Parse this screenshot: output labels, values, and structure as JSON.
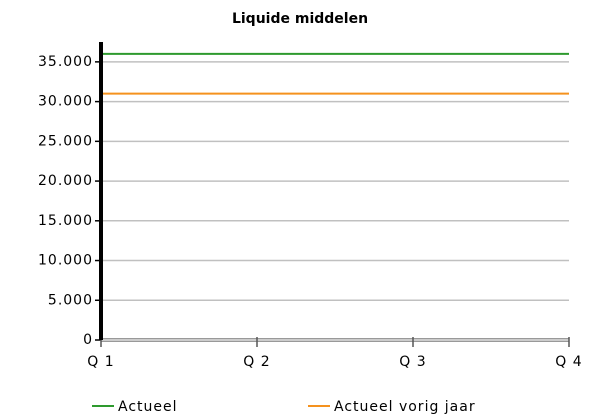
{
  "chart_data": {
    "type": "line",
    "title": "Liquide middelen",
    "categories": [
      "Q 1",
      "Q 2",
      "Q 3",
      "Q 4"
    ],
    "series": [
      {
        "name": "Actueel",
        "color": "#2e9a2e",
        "values": [
          36000,
          36000,
          36000,
          36000
        ]
      },
      {
        "name": "Actueel vorig jaar",
        "color": "#f5921e",
        "values": [
          31000,
          31000,
          31000,
          31000
        ]
      }
    ],
    "ylim": [
      0,
      37500
    ],
    "yticks": [
      {
        "value": 0,
        "label": "0"
      },
      {
        "value": 5000,
        "label": "5.000"
      },
      {
        "value": 10000,
        "label": "10.000"
      },
      {
        "value": 15000,
        "label": "15.000"
      },
      {
        "value": 20000,
        "label": "20.000"
      },
      {
        "value": 25000,
        "label": "25.000"
      },
      {
        "value": 30000,
        "label": "30.000"
      },
      {
        "value": 35000,
        "label": "35.000"
      }
    ],
    "grid": true
  }
}
